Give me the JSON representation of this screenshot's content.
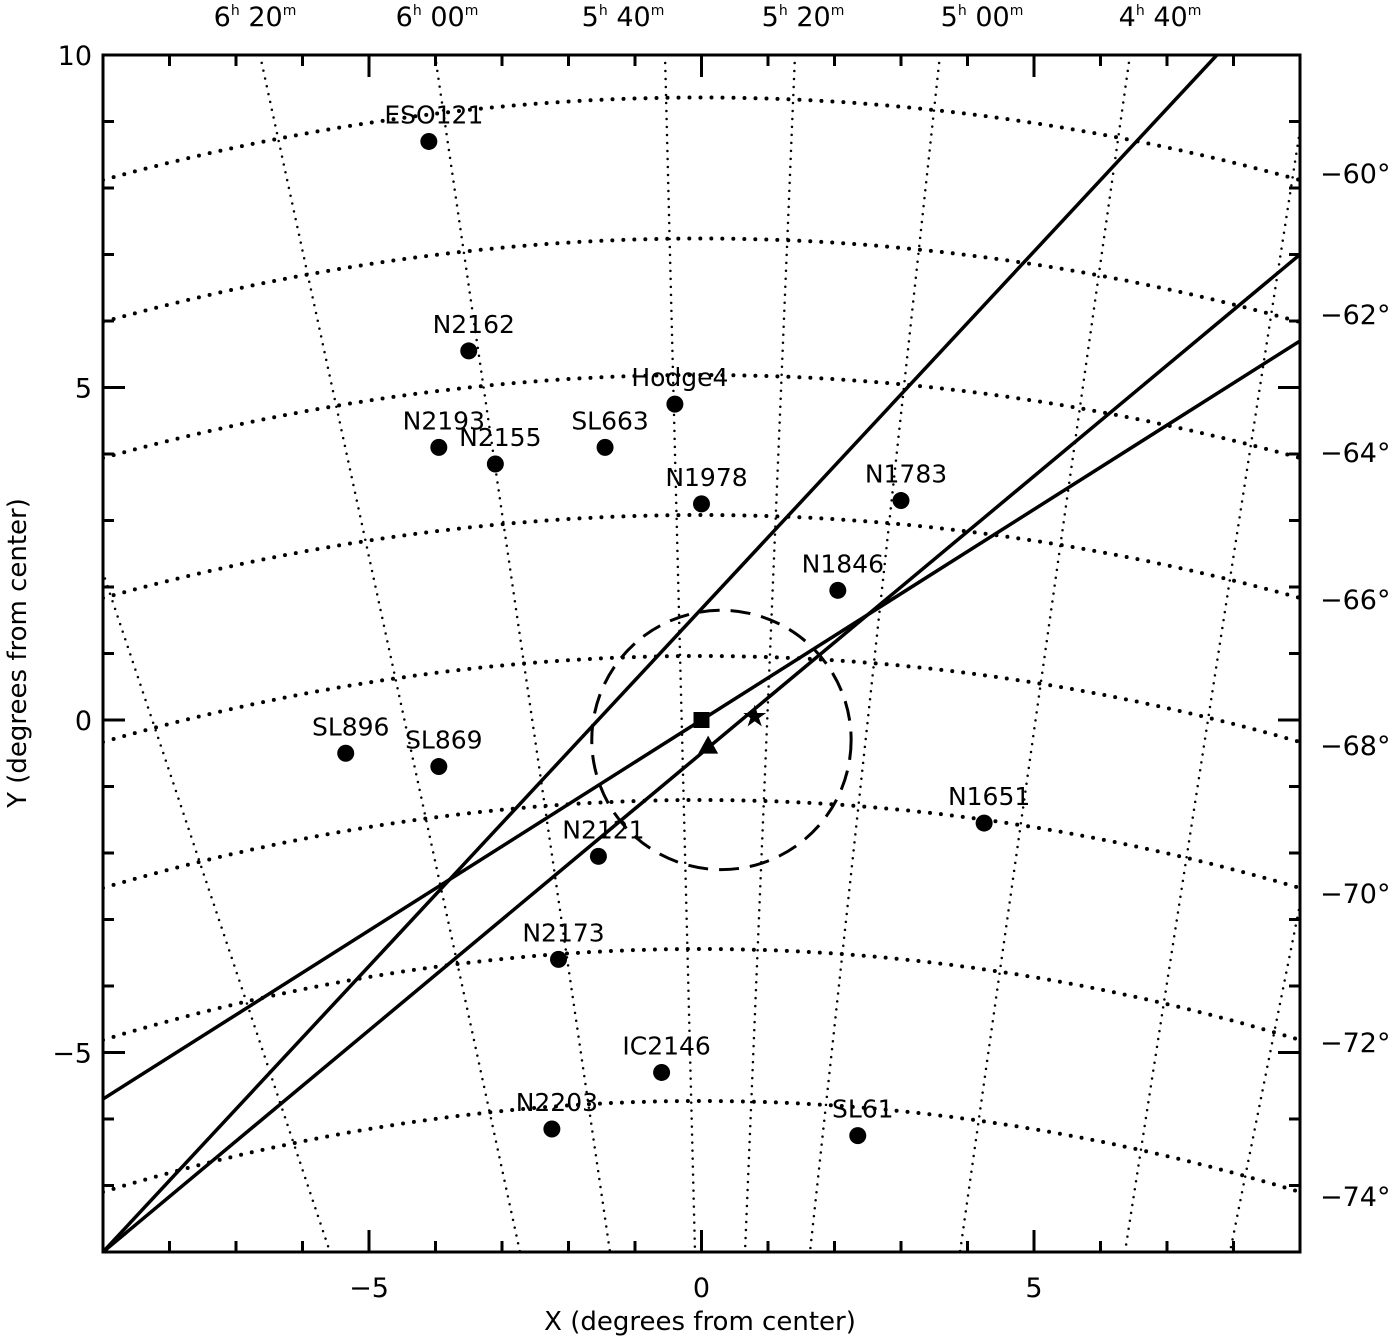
{
  "chart_data": {
    "type": "scatter",
    "xlabel": "X (degrees from center)",
    "ylabel": "Y (degrees from center)",
    "xlim": [
      -9,
      9
    ],
    "ylim": [
      -8,
      10
    ],
    "x_ticks": [
      {
        "value": -5,
        "label": "−5"
      },
      {
        "value": 0,
        "label": "0"
      },
      {
        "value": 5,
        "label": "5"
      }
    ],
    "y_ticks": [
      {
        "value": -5,
        "label": "−5"
      },
      {
        "value": 0,
        "label": "0"
      },
      {
        "value": 5,
        "label": "5"
      },
      {
        "value": 10,
        "label": "10"
      }
    ],
    "ra_labels": [
      {
        "h": "6",
        "m": "20"
      },
      {
        "h": "6",
        "m": "00"
      },
      {
        "h": "5",
        "m": "40"
      },
      {
        "h": "5",
        "m": "20"
      },
      {
        "h": "5",
        "m": "00"
      },
      {
        "h": "4",
        "m": "40"
      }
    ],
    "dec_labels": [
      "−60°",
      "−62°",
      "−64°",
      "−66°",
      "−68°",
      "−70°",
      "−72°",
      "−74°"
    ],
    "clusters": [
      {
        "name": "ESO121",
        "x": -4.1,
        "y": 8.7
      },
      {
        "name": "N2162",
        "x": -3.5,
        "y": 5.55
      },
      {
        "name": "Hodge4",
        "x": -0.4,
        "y": 4.75
      },
      {
        "name": "N2193",
        "x": -3.95,
        "y": 4.1
      },
      {
        "name": "SL663",
        "x": -1.45,
        "y": 4.1
      },
      {
        "name": "N2155",
        "x": -3.1,
        "y": 3.85
      },
      {
        "name": "N1978",
        "x": 0.0,
        "y": 3.25
      },
      {
        "name": "N1783",
        "x": 3.0,
        "y": 3.3
      },
      {
        "name": "N1846",
        "x": 2.05,
        "y": 1.95
      },
      {
        "name": "SL896",
        "x": -5.35,
        "y": -0.5
      },
      {
        "name": "SL869",
        "x": -3.95,
        "y": -0.7
      },
      {
        "name": "N1651",
        "x": 4.25,
        "y": -1.55
      },
      {
        "name": "N2121",
        "x": -1.55,
        "y": -2.05
      },
      {
        "name": "N2173",
        "x": -2.15,
        "y": -3.6
      },
      {
        "name": "IC2146",
        "x": -0.6,
        "y": -5.3
      },
      {
        "name": "N2203",
        "x": -2.25,
        "y": -6.15
      },
      {
        "name": "SL61",
        "x": 2.35,
        "y": -6.25
      }
    ],
    "center_markers": [
      {
        "shape": "square",
        "x": 0.0,
        "y": 0.0
      },
      {
        "shape": "triangle",
        "x": 0.1,
        "y": -0.4
      },
      {
        "shape": "star",
        "x": 0.8,
        "y": 0.05
      }
    ],
    "circle": {
      "x": 0.3,
      "y": -0.3,
      "radius": 1.95
    },
    "lines": [
      [
        [
          -9,
          -8
        ],
        [
          7.75,
          10
        ]
      ],
      [
        [
          -9,
          -8
        ],
        [
          9,
          7.0
        ]
      ],
      [
        [
          -9,
          -5.7
        ],
        [
          9,
          5.7
        ]
      ]
    ],
    "colors": {
      "ink": "#000000",
      "background": "#ffffff"
    }
  }
}
